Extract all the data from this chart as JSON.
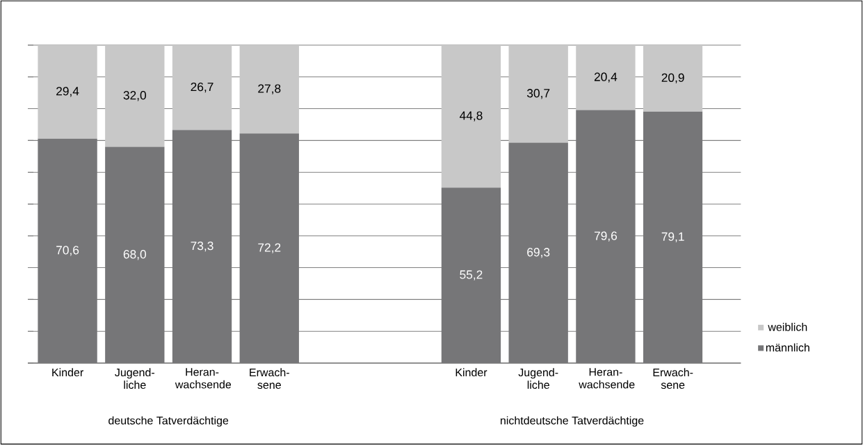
{
  "chart_data": {
    "type": "bar",
    "stacked": true,
    "categories": [
      "Kinder",
      "Jugend- liche",
      "Heran- wachsende",
      "Erwach- sene",
      null,
      null,
      "Kinder",
      "Jugend- liche",
      "Heran- wachsende",
      "Erwach- sene"
    ],
    "series": [
      {
        "name": "männlich",
        "color": "#767678",
        "values": [
          70.6,
          68.0,
          73.3,
          72.2,
          null,
          null,
          55.2,
          69.3,
          79.6,
          79.1
        ],
        "value_labels": [
          "70,6",
          "68,0",
          "73,3",
          "72,2",
          null,
          null,
          "55,2",
          "69,3",
          "79,6",
          "79,1"
        ]
      },
      {
        "name": "weiblich",
        "color": "#c8c8c8",
        "values": [
          29.4,
          32.0,
          26.7,
          27.8,
          null,
          null,
          44.8,
          30.7,
          20.4,
          20.9
        ],
        "value_labels": [
          "29,4",
          "32,0",
          "26,7",
          "27,8",
          null,
          null,
          "44,8",
          "30,7",
          "20,4",
          "20,9"
        ]
      }
    ],
    "ylim": [
      0,
      100
    ],
    "yticks": [
      {
        "value": 0,
        "label": null
      },
      {
        "value": 10,
        "label": null
      },
      {
        "value": 20,
        "label": null
      },
      {
        "value": 30,
        "label": null
      },
      {
        "value": 40,
        "label": null
      },
      {
        "value": 50,
        "label": null
      },
      {
        "value": 60,
        "label": null
      },
      {
        "value": 70,
        "label": null
      },
      {
        "value": 80,
        "label": null
      },
      {
        "value": 90,
        "label": null
      },
      {
        "value": 100,
        "label": null
      }
    ],
    "tick_labels": "x",
    "grid": "y",
    "legend": "bottom right",
    "annotations": [
      "deutsche Tatverdächtige",
      "nichtdeutsche Tatverdächtige"
    ]
  }
}
